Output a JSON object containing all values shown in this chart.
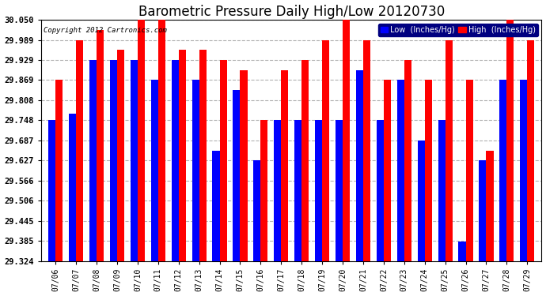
{
  "title": "Barometric Pressure Daily High/Low 20120730",
  "copyright": "Copyright 2012 Cartronics.com",
  "dates": [
    "07/06",
    "07/07",
    "07/08",
    "07/09",
    "07/10",
    "07/11",
    "07/12",
    "07/13",
    "07/14",
    "07/15",
    "07/16",
    "07/17",
    "07/18",
    "07/19",
    "07/20",
    "07/21",
    "07/22",
    "07/23",
    "07/24",
    "07/25",
    "07/26",
    "07/27",
    "07/28",
    "07/29"
  ],
  "low": [
    29.748,
    29.769,
    29.929,
    29.929,
    29.929,
    29.869,
    29.929,
    29.869,
    29.657,
    29.839,
    29.627,
    29.748,
    29.748,
    29.748,
    29.748,
    29.899,
    29.748,
    29.869,
    29.687,
    29.748,
    29.384,
    29.627,
    29.869,
    29.869
  ],
  "high": [
    29.869,
    29.989,
    30.02,
    29.959,
    30.05,
    30.05,
    29.959,
    29.959,
    29.929,
    29.899,
    29.748,
    29.899,
    29.929,
    29.989,
    30.05,
    29.989,
    29.869,
    29.929,
    29.869,
    29.989,
    29.869,
    29.657,
    30.05,
    29.989
  ],
  "ymin": 29.324,
  "ymax": 30.05,
  "yticks": [
    29.324,
    29.385,
    29.445,
    29.506,
    29.566,
    29.627,
    29.687,
    29.748,
    29.808,
    29.869,
    29.929,
    29.989,
    30.05
  ],
  "low_color": "#0000ff",
  "high_color": "#ff0000",
  "bg_color": "#ffffff",
  "grid_color": "#aaaaaa",
  "title_fontsize": 12,
  "legend_low_label": "Low  (Inches/Hg)",
  "legend_high_label": "High  (Inches/Hg)"
}
